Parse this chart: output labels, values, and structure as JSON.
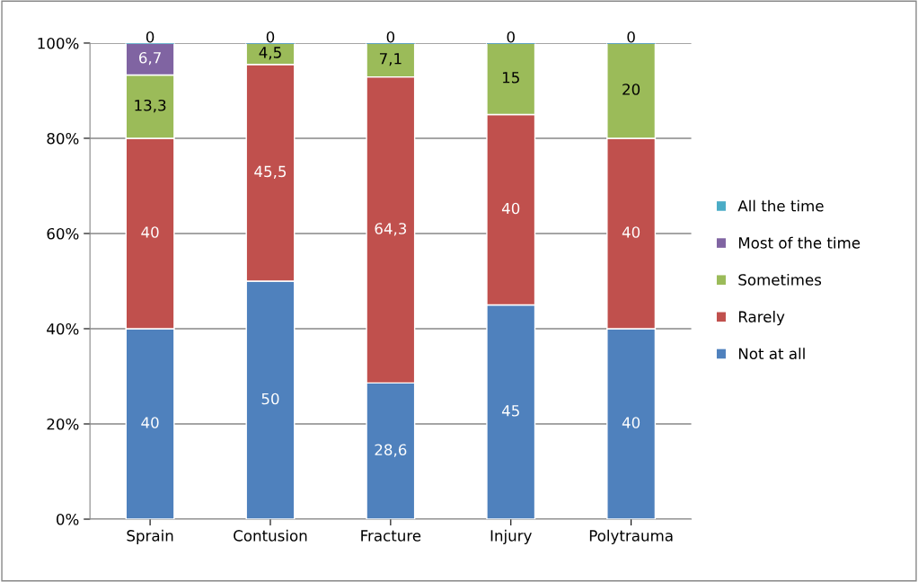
{
  "chart_data": {
    "type": "bar",
    "stacked": true,
    "categories": [
      "Sprain",
      "Contusion",
      "Fracture",
      "Injury",
      "Polytrauma"
    ],
    "series": [
      {
        "name": "Not at all",
        "color": "#4f81bd",
        "values": [
          40,
          50,
          28.6,
          45,
          40
        ],
        "value_labels": [
          "40",
          "50",
          "28,6",
          "45",
          "40"
        ]
      },
      {
        "name": "Rarely",
        "color": "#c0504d",
        "values": [
          40,
          45.5,
          64.3,
          40,
          40
        ],
        "value_labels": [
          "40",
          "45,5",
          "64,3",
          "40",
          "40"
        ]
      },
      {
        "name": "Sometimes",
        "color": "#9bbb59",
        "values": [
          13.3,
          4.5,
          7.1,
          15,
          20
        ],
        "value_labels": [
          "13,3",
          "4,5",
          "7,1",
          "15",
          "20"
        ]
      },
      {
        "name": "Most of the time",
        "color": "#8064a2",
        "values": [
          6.7,
          0,
          0,
          0,
          0
        ],
        "value_labels": [
          "6,7",
          null,
          null,
          null,
          null
        ]
      },
      {
        "name": "All the time",
        "color": "#4bacc6",
        "values": [
          0,
          0,
          0,
          0,
          0
        ],
        "value_labels": [
          "0",
          "0",
          "0",
          "0",
          "0"
        ]
      }
    ],
    "ylim": [
      0,
      100
    ],
    "yticks": [
      {
        "value": 0,
        "label": "0%"
      },
      {
        "value": 20,
        "label": "20%"
      },
      {
        "value": 40,
        "label": "40%"
      },
      {
        "value": 60,
        "label": "60%"
      },
      {
        "value": 80,
        "label": "80%"
      },
      {
        "value": 100,
        "label": "100%"
      }
    ],
    "grid": "y",
    "legend": "right"
  }
}
